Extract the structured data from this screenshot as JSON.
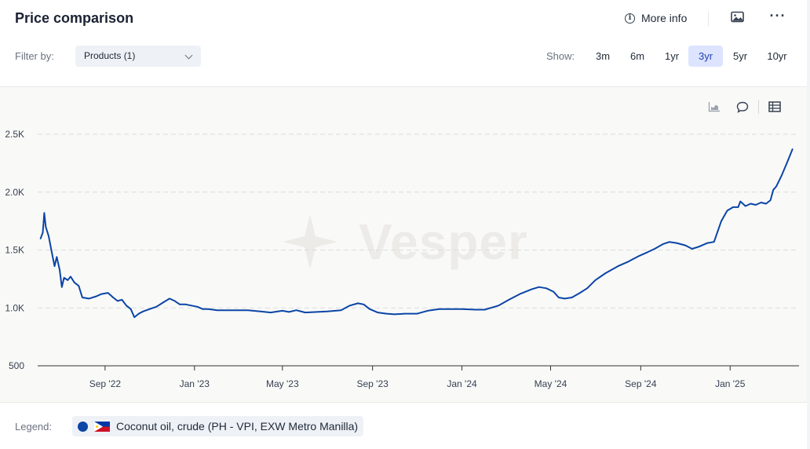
{
  "header": {
    "title": "Price comparison",
    "more_info_label": "More info",
    "icons": {
      "info": "info-icon",
      "image": "image-icon",
      "menu": "more-dots-icon"
    }
  },
  "filter": {
    "label": "Filter by:",
    "selected": "Products (1)"
  },
  "range": {
    "label": "Show:",
    "options": [
      "3m",
      "6m",
      "1yr",
      "3yr",
      "5yr",
      "10yr"
    ],
    "active": "3yr"
  },
  "chart_tools": [
    "chart-type-icon",
    "comment-icon",
    "table-icon"
  ],
  "watermark": "Vesper",
  "legend": {
    "label": "Legend:",
    "items": [
      {
        "name": "Coconut oil, crude (PH - VPI, EXW Metro Manilla)",
        "color": "#0b45a6",
        "flag": "philippines-flag-icon"
      }
    ]
  },
  "chart_data": {
    "type": "line",
    "title": "",
    "xlabel": "",
    "ylabel": "",
    "ylim": [
      500,
      2500
    ],
    "yticks": [
      {
        "value": 500,
        "label": "500"
      },
      {
        "value": 1000,
        "label": "1.0K"
      },
      {
        "value": 1500,
        "label": "1.5K"
      },
      {
        "value": 2000,
        "label": "2.0K"
      },
      {
        "value": 2500,
        "label": "2.5K"
      }
    ],
    "xlim": [
      "2022-06-01",
      "2025-04-05"
    ],
    "xticks": [
      {
        "date": "2022-09-01",
        "label": "Sep '22"
      },
      {
        "date": "2023-01-01",
        "label": "Jan '23"
      },
      {
        "date": "2023-05-01",
        "label": "May '23"
      },
      {
        "date": "2023-09-01",
        "label": "Sep '23"
      },
      {
        "date": "2024-01-01",
        "label": "Jan '24"
      },
      {
        "date": "2024-05-01",
        "label": "May '24"
      },
      {
        "date": "2024-09-01",
        "label": "Sep '24"
      },
      {
        "date": "2025-01-01",
        "label": "Jan '25"
      }
    ],
    "grid": true,
    "series": [
      {
        "name": "Coconut oil, crude (PH - VPI, EXW Metro Manilla)",
        "color": "#0b45a6",
        "points": [
          [
            "2022-06-05",
            1600
          ],
          [
            "2022-06-08",
            1650
          ],
          [
            "2022-06-10",
            1820
          ],
          [
            "2022-06-12",
            1700
          ],
          [
            "2022-06-16",
            1620
          ],
          [
            "2022-06-20",
            1490
          ],
          [
            "2022-06-24",
            1360
          ],
          [
            "2022-06-27",
            1440
          ],
          [
            "2022-07-01",
            1330
          ],
          [
            "2022-07-04",
            1180
          ],
          [
            "2022-07-07",
            1260
          ],
          [
            "2022-07-12",
            1240
          ],
          [
            "2022-07-16",
            1270
          ],
          [
            "2022-07-21",
            1220
          ],
          [
            "2022-07-27",
            1190
          ],
          [
            "2022-08-01",
            1090
          ],
          [
            "2022-08-10",
            1080
          ],
          [
            "2022-08-20",
            1100
          ],
          [
            "2022-08-27",
            1120
          ],
          [
            "2022-09-05",
            1130
          ],
          [
            "2022-09-12",
            1090
          ],
          [
            "2022-09-18",
            1060
          ],
          [
            "2022-09-24",
            1070
          ],
          [
            "2022-09-30",
            1020
          ],
          [
            "2022-10-06",
            990
          ],
          [
            "2022-10-11",
            920
          ],
          [
            "2022-10-17",
            950
          ],
          [
            "2022-10-23",
            970
          ],
          [
            "2022-11-01",
            990
          ],
          [
            "2022-11-10",
            1010
          ],
          [
            "2022-11-20",
            1050
          ],
          [
            "2022-11-28",
            1080
          ],
          [
            "2022-12-05",
            1060
          ],
          [
            "2022-12-12",
            1030
          ],
          [
            "2022-12-20",
            1030
          ],
          [
            "2022-12-28",
            1020
          ],
          [
            "2023-01-05",
            1010
          ],
          [
            "2023-01-12",
            990
          ],
          [
            "2023-01-20",
            990
          ],
          [
            "2023-02-01",
            980
          ],
          [
            "2023-02-15",
            980
          ],
          [
            "2023-03-01",
            980
          ],
          [
            "2023-03-15",
            980
          ],
          [
            "2023-04-01",
            970
          ],
          [
            "2023-04-15",
            960
          ],
          [
            "2023-05-01",
            975
          ],
          [
            "2023-05-10",
            965
          ],
          [
            "2023-05-20",
            980
          ],
          [
            "2023-06-01",
            960
          ],
          [
            "2023-07-01",
            970
          ],
          [
            "2023-07-20",
            980
          ],
          [
            "2023-08-01",
            1020
          ],
          [
            "2023-08-12",
            1040
          ],
          [
            "2023-08-20",
            1030
          ],
          [
            "2023-08-28",
            990
          ],
          [
            "2023-09-08",
            960
          ],
          [
            "2023-09-20",
            950
          ],
          [
            "2023-10-01",
            945
          ],
          [
            "2023-10-15",
            950
          ],
          [
            "2023-11-01",
            950
          ],
          [
            "2023-11-15",
            975
          ],
          [
            "2023-12-01",
            990
          ],
          [
            "2023-12-15",
            990
          ],
          [
            "2024-01-01",
            990
          ],
          [
            "2024-01-20",
            985
          ],
          [
            "2024-02-01",
            985
          ],
          [
            "2024-02-20",
            1020
          ],
          [
            "2024-03-05",
            1070
          ],
          [
            "2024-03-20",
            1120
          ],
          [
            "2024-04-05",
            1160
          ],
          [
            "2024-04-15",
            1180
          ],
          [
            "2024-04-25",
            1170
          ],
          [
            "2024-05-05",
            1140
          ],
          [
            "2024-05-12",
            1090
          ],
          [
            "2024-05-20",
            1080
          ],
          [
            "2024-05-30",
            1090
          ],
          [
            "2024-06-10",
            1130
          ],
          [
            "2024-06-20",
            1170
          ],
          [
            "2024-07-01",
            1240
          ],
          [
            "2024-07-15",
            1300
          ],
          [
            "2024-08-01",
            1360
          ],
          [
            "2024-08-15",
            1400
          ],
          [
            "2024-08-30",
            1450
          ],
          [
            "2024-09-10",
            1480
          ],
          [
            "2024-09-20",
            1510
          ],
          [
            "2024-10-01",
            1550
          ],
          [
            "2024-10-10",
            1570
          ],
          [
            "2024-10-20",
            1560
          ],
          [
            "2024-11-01",
            1540
          ],
          [
            "2024-11-10",
            1510
          ],
          [
            "2024-11-20",
            1530
          ],
          [
            "2024-12-01",
            1560
          ],
          [
            "2024-12-10",
            1570
          ],
          [
            "2024-12-20",
            1750
          ],
          [
            "2024-12-28",
            1840
          ],
          [
            "2025-01-05",
            1870
          ],
          [
            "2025-01-12",
            1870
          ],
          [
            "2025-01-15",
            1920
          ],
          [
            "2025-01-22",
            1880
          ],
          [
            "2025-01-29",
            1900
          ],
          [
            "2025-02-05",
            1890
          ],
          [
            "2025-02-12",
            1910
          ],
          [
            "2025-02-19",
            1900
          ],
          [
            "2025-02-25",
            1930
          ],
          [
            "2025-03-01",
            2020
          ],
          [
            "2025-03-05",
            2050
          ],
          [
            "2025-03-12",
            2140
          ],
          [
            "2025-03-20",
            2260
          ],
          [
            "2025-03-27",
            2370
          ]
        ]
      }
    ]
  }
}
